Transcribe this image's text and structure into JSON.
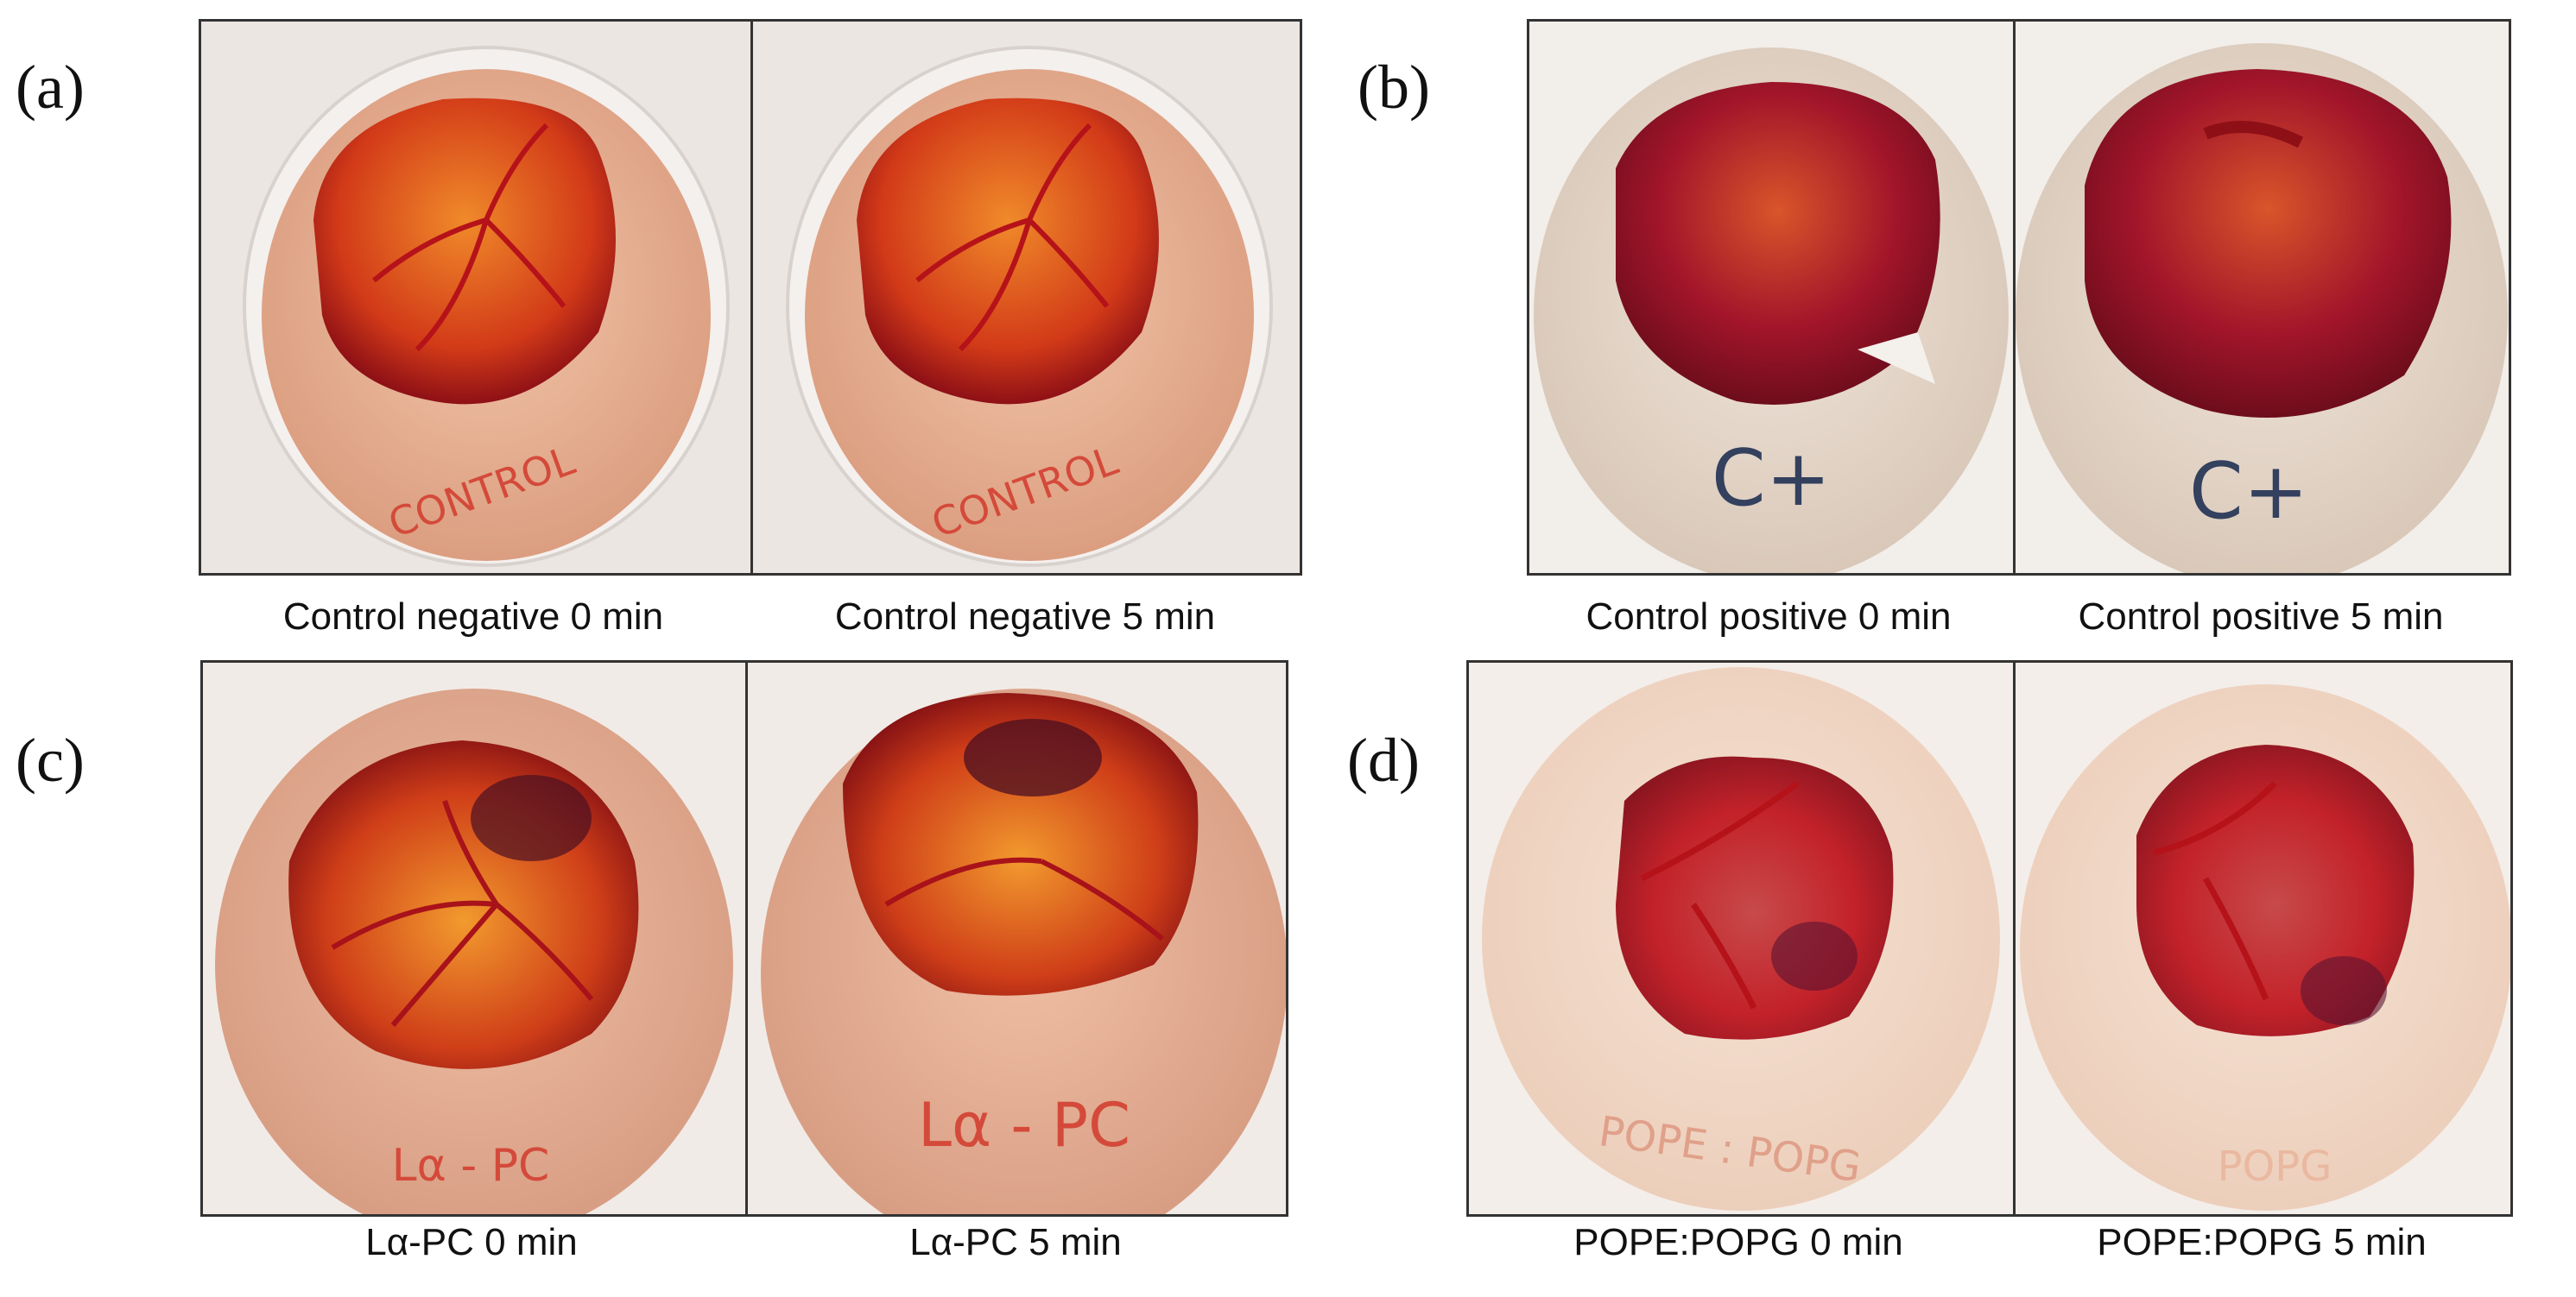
{
  "panels": [
    {
      "letter": "(a)",
      "captions": [
        "Control negative 0 min",
        "Control negative 5 min"
      ],
      "shell_writing": [
        "CONTROL",
        "CONTROL"
      ]
    },
    {
      "letter": "(b)",
      "captions": [
        "Control positive 0 min",
        "Control positive 5 min"
      ],
      "shell_writing": [
        "C+",
        "C+"
      ]
    },
    {
      "letter": "(c)",
      "captions": [
        "Lα-PC 0 min",
        "Lα-PC 5 min"
      ],
      "shell_writing": [
        "Lα - PC",
        "Lα - PC"
      ]
    },
    {
      "letter": "(d)",
      "captions": [
        "POPE:POPG 0 min",
        "POPE:POPG 5 min"
      ],
      "shell_writing": [
        "POPE : POPG",
        "POPG"
      ]
    }
  ],
  "colors": {
    "shell": "#e9b9a0",
    "shell_pale": "#efe0d6",
    "membrane": "#d13a1a",
    "vessel": "#b5121a",
    "frame": "#333333",
    "marker_red": "#d44a3a",
    "marker_blue": "#33405e"
  }
}
